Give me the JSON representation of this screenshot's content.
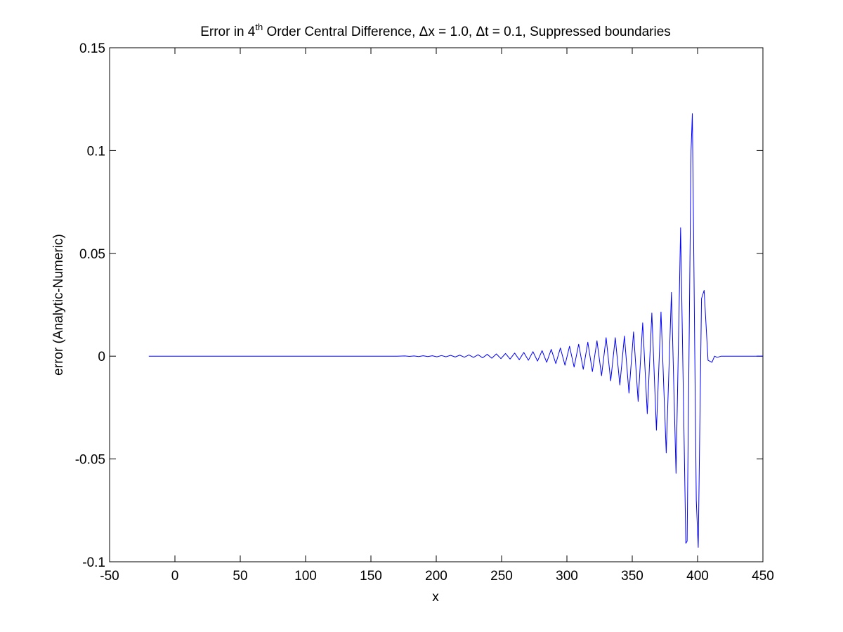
{
  "chart_data": {
    "type": "line",
    "title": {
      "prefix": "Error in 4",
      "superscript": "th",
      "suffix": " Order Central Difference, Δx = 1.0, Δt = 0.1, Suppressed boundaries"
    },
    "xlabel": "x",
    "ylabel": "error (Analytic-Numeric)",
    "xlim": [
      -50,
      450
    ],
    "ylim": [
      -0.1,
      0.15
    ],
    "xticks": [
      -50,
      0,
      50,
      100,
      150,
      200,
      250,
      300,
      350,
      400,
      450
    ],
    "xtick_labels": [
      "-50",
      "0",
      "50",
      "100",
      "150",
      "200",
      "250",
      "300",
      "350",
      "400",
      "450"
    ],
    "yticks": [
      -0.1,
      -0.05,
      0,
      0.05,
      0.1,
      0.15
    ],
    "ytick_labels": [
      "-0.1",
      "-0.05",
      "0",
      "0.05",
      "0.1",
      "0.15"
    ],
    "grid": false,
    "line_color": "#0000ff",
    "axes_color": "#000000",
    "series": [
      {
        "x": [
          -20,
          170,
          176,
          179.5,
          183,
          186.5,
          190,
          193.5,
          197,
          200.5,
          204,
          207.5,
          211,
          214.5,
          218,
          221.5,
          225,
          228.5,
          232,
          235.5,
          239,
          242.5,
          246,
          249.5,
          253,
          256.5,
          260,
          263.5,
          267,
          270.5,
          274,
          277.5,
          281,
          284.5,
          288,
          291.5,
          295,
          298.5,
          302,
          305.5,
          309,
          312.5,
          316,
          319.5,
          323,
          326.5,
          330,
          333.5,
          337,
          340.5,
          344,
          347.5,
          351,
          354.5,
          358,
          361.5,
          365,
          368.5,
          372,
          376,
          380,
          383.5,
          387,
          391,
          392,
          395,
          396,
          399,
          400.5,
          403,
          405,
          408,
          411,
          413,
          415,
          418,
          450
        ],
        "y": [
          0,
          0,
          0.0001,
          -0.0001,
          0.0001,
          -0.0002,
          0.0002,
          -0.0002,
          0.0002,
          -0.0003,
          0.0003,
          -0.0003,
          0.0004,
          -0.0004,
          0.0005,
          -0.0005,
          0.0006,
          -0.0006,
          0.0007,
          -0.0008,
          0.0009,
          -0.001,
          0.0011,
          -0.0012,
          0.0013,
          -0.0014,
          0.0015,
          -0.0017,
          0.0018,
          -0.002,
          0.0022,
          -0.0024,
          0.0027,
          -0.003,
          0.0033,
          -0.0036,
          0.004,
          -0.0044,
          0.0048,
          -0.0053,
          0.0058,
          -0.0064,
          0.0068,
          -0.0075,
          0.0075,
          -0.0095,
          0.009,
          -0.012,
          0.009,
          -0.014,
          0.0098,
          -0.018,
          0.0118,
          -0.022,
          0.0162,
          -0.028,
          0.021,
          -0.036,
          0.0215,
          -0.047,
          0.031,
          -0.057,
          0.0625,
          -0.091,
          -0.09,
          0.1,
          0.118,
          -0.07,
          -0.093,
          0.028,
          0.032,
          -0.002,
          -0.003,
          0.0,
          -0.0006,
          0,
          0
        ]
      }
    ]
  }
}
